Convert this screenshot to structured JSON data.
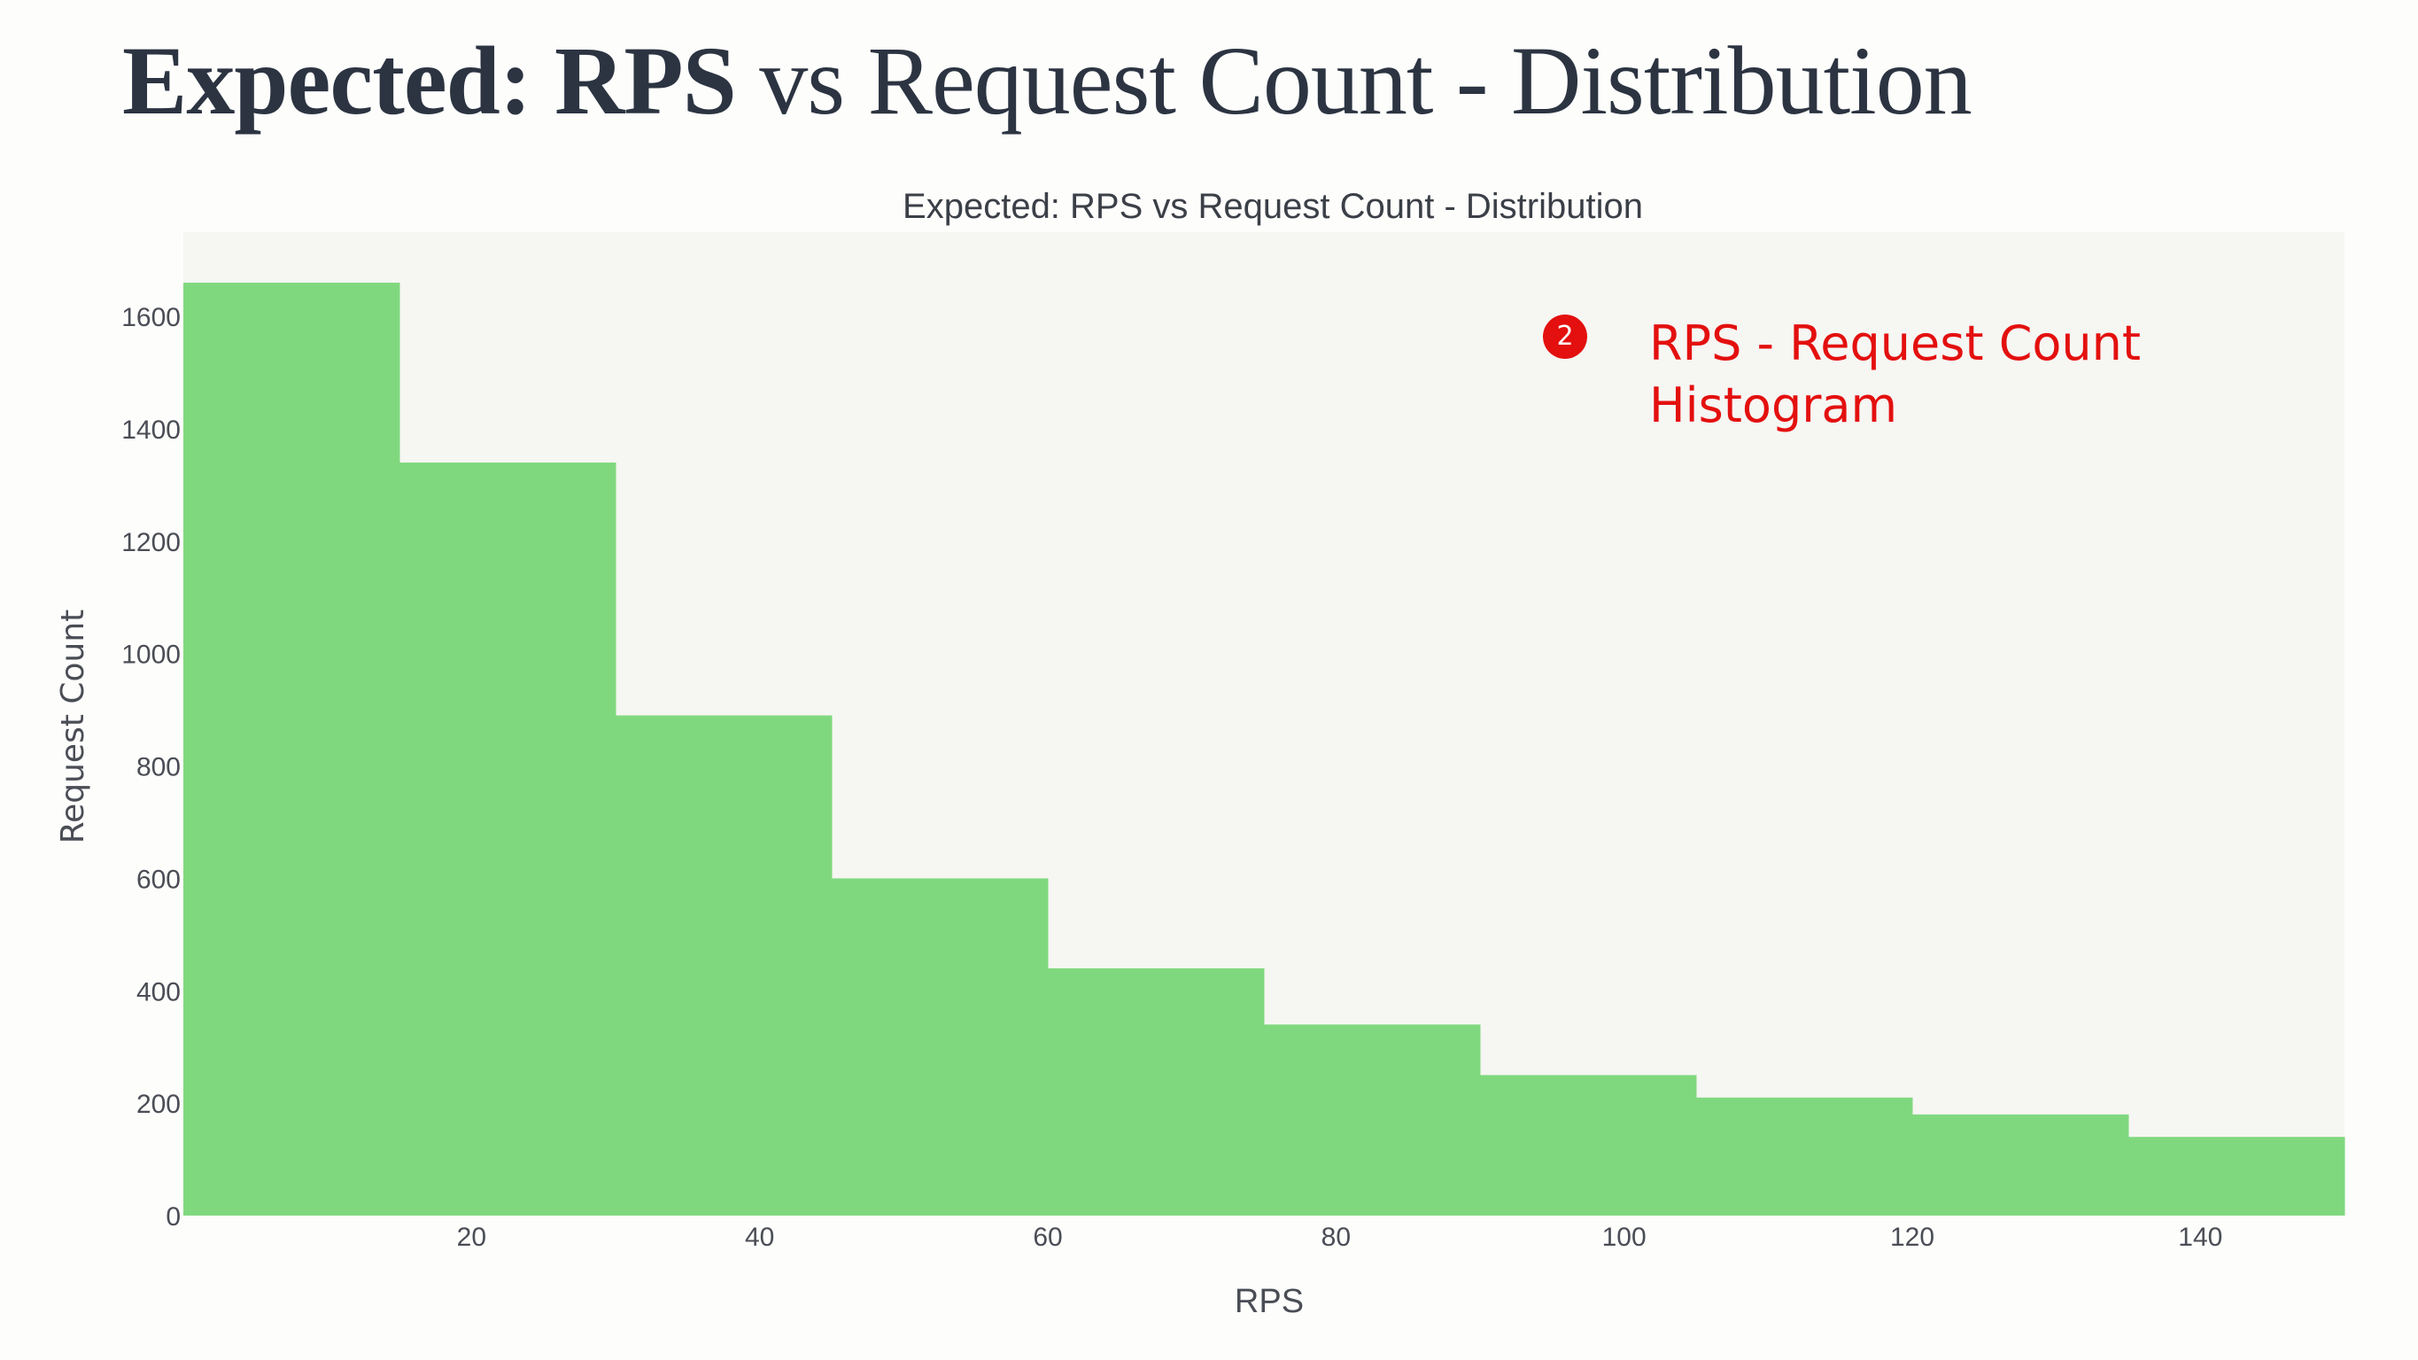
{
  "page": {
    "title_strong": "Expected: RPS",
    "title_rest": " vs Request Count - Distribution"
  },
  "annotation": {
    "badge": "2",
    "text": "RPS - Request Count Histogram"
  },
  "colors": {
    "bar": "#80d87e",
    "plot_bg": "#f6f6f3",
    "title_text": "#2c3442",
    "annotation": "#e3100f"
  },
  "chart_data": {
    "type": "bar",
    "title": "Expected: RPS vs Request Count - Distribution",
    "xlabel": "RPS",
    "ylabel": "Request Count",
    "xlim": [
      0,
      150
    ],
    "ylim": [
      0,
      1750
    ],
    "x_ticks": [
      20,
      40,
      60,
      80,
      100,
      120,
      140
    ],
    "y_ticks": [
      0,
      200,
      400,
      600,
      800,
      1000,
      1200,
      1400,
      1600
    ],
    "bins": [
      {
        "x0": 0,
        "x1": 15,
        "value": 1660
      },
      {
        "x0": 15,
        "x1": 30,
        "value": 1340
      },
      {
        "x0": 30,
        "x1": 45,
        "value": 890
      },
      {
        "x0": 45,
        "x1": 60,
        "value": 600
      },
      {
        "x0": 60,
        "x1": 75,
        "value": 440
      },
      {
        "x0": 75,
        "x1": 90,
        "value": 340
      },
      {
        "x0": 90,
        "x1": 105,
        "value": 250
      },
      {
        "x0": 105,
        "x1": 120,
        "value": 210
      },
      {
        "x0": 120,
        "x1": 135,
        "value": 180
      },
      {
        "x0": 135,
        "x1": 150,
        "value": 140
      }
    ],
    "grid": false,
    "legend": "none"
  }
}
